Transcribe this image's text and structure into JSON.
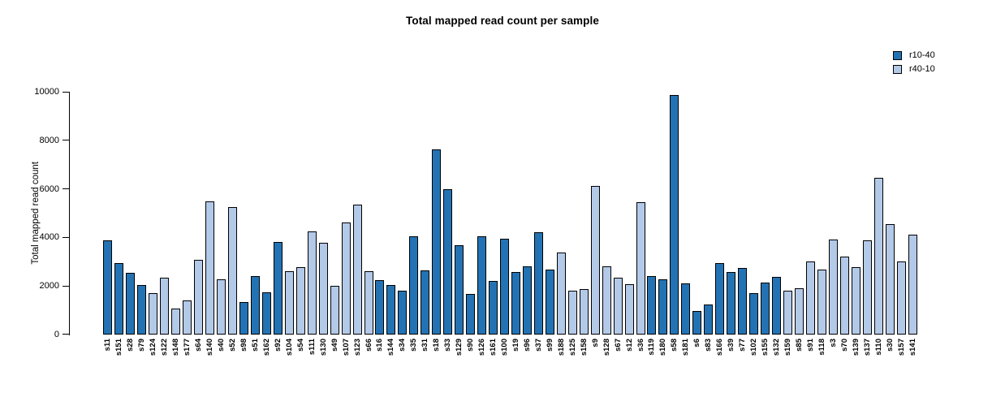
{
  "title": "Total mapped read count per sample",
  "colors": {
    "dark": "#2373B4",
    "light": "#B3C9E8",
    "axis": "#000000"
  },
  "legend": {
    "entries": [
      {
        "label": "r10-40",
        "color_key": "dark"
      },
      {
        "label": "r40-10",
        "color_key": "light"
      }
    ]
  },
  "y_axis": {
    "label": "Total mapped read count",
    "ticks": [
      0,
      2000,
      4000,
      6000,
      8000,
      10000
    ]
  },
  "chart_data": {
    "type": "bar",
    "title": "Total mapped read count per sample",
    "xlabel": "",
    "ylabel": "Total mapped read count",
    "ylim": [
      0,
      10000
    ],
    "yticks": [
      0,
      2000,
      4000,
      6000,
      8000,
      10000
    ],
    "grid": false,
    "legend_position": "top-right",
    "series": [
      {
        "name": "r10-40",
        "color": "#2373B4"
      },
      {
        "name": "r40-10",
        "color": "#B3C9E8"
      }
    ],
    "categories": [
      "s11",
      "s151",
      "s28",
      "s79",
      "s124",
      "s122",
      "s148",
      "s177",
      "s64",
      "s140",
      "s40",
      "s52",
      "s98",
      "s51",
      "s162",
      "s92",
      "s104",
      "s54",
      "s111",
      "s130",
      "s49",
      "s107",
      "s123",
      "s66",
      "s16",
      "s144",
      "s34",
      "s35",
      "s31",
      "s18",
      "s33",
      "s129",
      "s90",
      "s126",
      "s161",
      "s100",
      "s19",
      "s96",
      "s37",
      "s99",
      "s188",
      "s125",
      "s158",
      "s9",
      "s128",
      "s67",
      "s12",
      "s36",
      "s119",
      "s180",
      "s58",
      "s181",
      "s6",
      "s83",
      "s166",
      "s39",
      "s77",
      "s102",
      "s155",
      "s132",
      "s159",
      "s85",
      "s91",
      "s118",
      "s3",
      "s70",
      "s139",
      "s137",
      "s110",
      "s30",
      "s157",
      "s141"
    ],
    "values": [
      3870,
      2940,
      2530,
      2040,
      1700,
      2350,
      1050,
      1400,
      3060,
      5500,
      2280,
      5250,
      1330,
      2390,
      1720,
      3810,
      2600,
      2770,
      4230,
      3770,
      2000,
      4600,
      5350,
      2600,
      2230,
      2040,
      1790,
      4030,
      2640,
      7620,
      5990,
      3660,
      1650,
      4050,
      2190,
      3930,
      2570,
      2790,
      4220,
      2680,
      3380,
      1790,
      1860,
      6110,
      2790,
      2320,
      2060,
      5440,
      2400,
      2280,
      9890,
      2090,
      950,
      1230,
      2930,
      2560,
      2730,
      1710,
      2120,
      2370,
      1790,
      1900,
      3000,
      2680,
      3910,
      3220,
      2770,
      3870,
      6450,
      4540,
      3000,
      4110
    ],
    "groups": [
      "r10-40",
      "r10-40",
      "r10-40",
      "r10-40",
      "r40-10",
      "r40-10",
      "r40-10",
      "r40-10",
      "r40-10",
      "r40-10",
      "r40-10",
      "r40-10",
      "r10-40",
      "r10-40",
      "r10-40",
      "r10-40",
      "r40-10",
      "r40-10",
      "r40-10",
      "r40-10",
      "r40-10",
      "r40-10",
      "r40-10",
      "r40-10",
      "r10-40",
      "r10-40",
      "r10-40",
      "r10-40",
      "r10-40",
      "r10-40",
      "r10-40",
      "r10-40",
      "r10-40",
      "r10-40",
      "r10-40",
      "r10-40",
      "r10-40",
      "r10-40",
      "r10-40",
      "r10-40",
      "r40-10",
      "r40-10",
      "r40-10",
      "r40-10",
      "r40-10",
      "r40-10",
      "r40-10",
      "r40-10",
      "r10-40",
      "r10-40",
      "r10-40",
      "r10-40",
      "r10-40",
      "r10-40",
      "r10-40",
      "r10-40",
      "r10-40",
      "r10-40",
      "r10-40",
      "r10-40",
      "r40-10",
      "r40-10",
      "r40-10",
      "r40-10",
      "r40-10",
      "r40-10",
      "r40-10",
      "r40-10",
      "r40-10",
      "r40-10",
      "r40-10",
      "r40-10"
    ]
  }
}
